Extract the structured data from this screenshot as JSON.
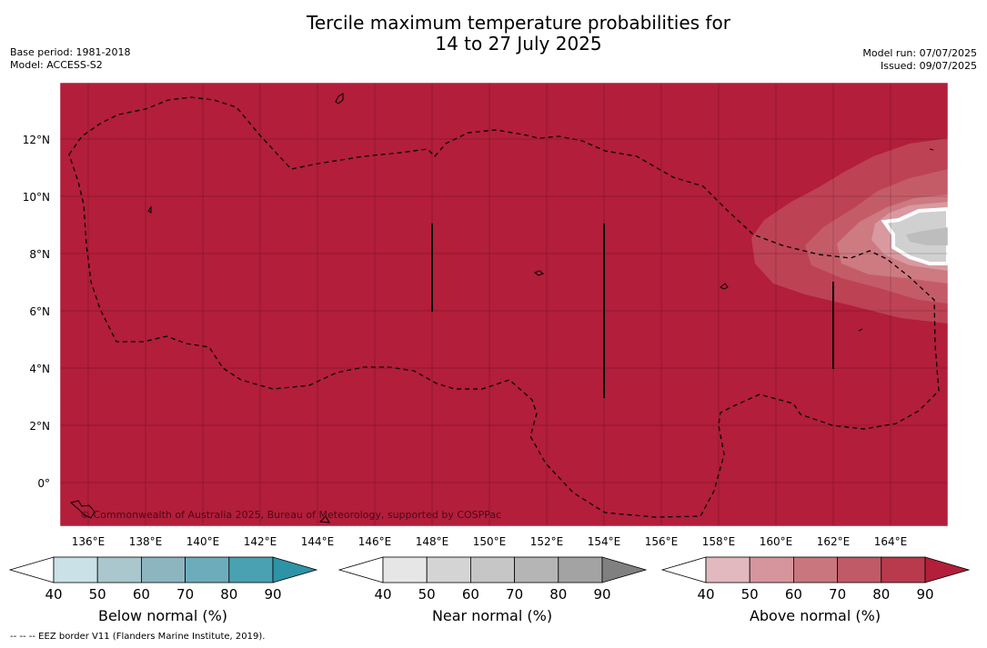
{
  "title_line1": "Tercile maximum temperature probabilities for",
  "title_line2": "14 to 27 July 2025",
  "base_period": "Base period: 1981-2018",
  "model": "Model: ACCESS-S2",
  "model_run": "Model run: 07/07/2025",
  "issued": "Issued: 09/07/2025",
  "lat_labels": [
    "12°N",
    "10°N",
    "8°N",
    "6°N",
    "4°N",
    "2°N",
    "0°"
  ],
  "lon_labels": [
    "136°E",
    "138°E",
    "140°E",
    "142°E",
    "144°E",
    "146°E",
    "148°E",
    "150°E",
    "152°E",
    "154°E",
    "156°E",
    "158°E",
    "160°E",
    "162°E",
    "164°E"
  ],
  "copyright": "© Commonwealth of Australia 2025, Bureau of Meteorology, supported by COSPPac",
  "colorbars": [
    {
      "title": "Below normal (%)",
      "ticks": [
        "40",
        "50",
        "60",
        "70",
        "80",
        "90"
      ],
      "colors": [
        "#ffffff",
        "#c9e1e7",
        "#a9c7cd",
        "#8cb5c0",
        "#6dadbb",
        "#4aa1b1",
        "#2e93a6"
      ]
    },
    {
      "title": "Near normal (%)",
      "ticks": [
        "40",
        "50",
        "60",
        "70",
        "80",
        "90"
      ],
      "colors": [
        "#ffffff",
        "#e6e6e6",
        "#d4d4d4",
        "#c6c6c6",
        "#b5b5b5",
        "#a3a3a3",
        "#808080"
      ]
    },
    {
      "title": "Above normal (%)",
      "ticks": [
        "40",
        "50",
        "60",
        "70",
        "80",
        "90"
      ],
      "colors": [
        "#ffffff",
        "#e1b9be",
        "#d6959c",
        "#c9767e",
        "#c05a66",
        "#b83a4c",
        "#b31e3a"
      ]
    }
  ],
  "footer": "--  --  -- EEZ border V11 (Flanders Marine Institute, 2019).",
  "map_fill_color": "#b31e3a"
}
